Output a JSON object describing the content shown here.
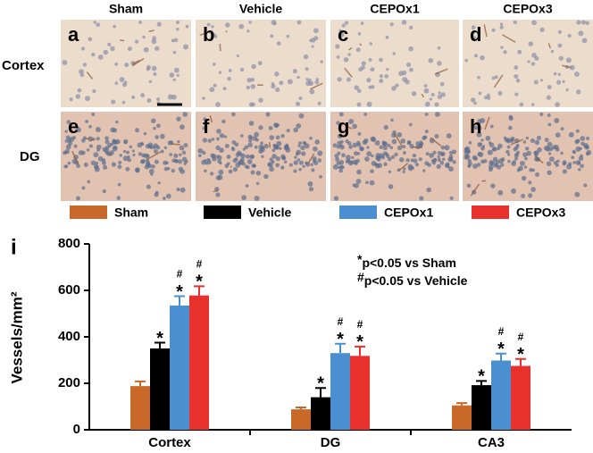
{
  "figure": {
    "column_labels": [
      "Sham",
      "Vehicle",
      "CEPOx1",
      "CEPOx3"
    ],
    "row_labels": [
      "Cortex",
      "DG"
    ],
    "panel_letters": [
      "a",
      "b",
      "c",
      "d",
      "e",
      "f",
      "g",
      "h"
    ]
  },
  "chart_data": {
    "type": "bar",
    "panel_label": "i",
    "y_label": "Vessels/mm²",
    "categories": [
      "Cortex",
      "DG",
      "CA3"
    ],
    "series": [
      {
        "name": "Sham",
        "color": "#c8692a",
        "values": [
          188,
          88,
          105
        ],
        "errors": [
          20,
          8,
          10
        ]
      },
      {
        "name": "Vehicle",
        "color": "#000000",
        "values": [
          350,
          140,
          192
        ],
        "errors": [
          25,
          40,
          18
        ],
        "significance": [
          [
            "*"
          ],
          [
            "*"
          ],
          [
            "*"
          ]
        ]
      },
      {
        "name": "CEPOx1",
        "color": "#4a90d0",
        "values": [
          535,
          330,
          298
        ],
        "errors": [
          40,
          40,
          30
        ],
        "significance": [
          [
            "#",
            "*"
          ],
          [
            "#",
            "*"
          ],
          [
            "#",
            "*"
          ]
        ]
      },
      {
        "name": "CEPOx3",
        "color": "#e8302c",
        "values": [
          578,
          318,
          275
        ],
        "errors": [
          40,
          40,
          30
        ],
        "significance": [
          [
            "#",
            "*"
          ],
          [
            "#",
            "*"
          ],
          [
            "#",
            "*"
          ]
        ]
      }
    ],
    "ylim": [
      0,
      800
    ],
    "yticks": [
      0,
      200,
      400,
      600,
      800
    ],
    "annotations": [
      {
        "marker": "*",
        "text": "p<0.05 vs Sham"
      },
      {
        "marker": "#",
        "text": "p<0.05 vs Vehicle"
      }
    ]
  }
}
